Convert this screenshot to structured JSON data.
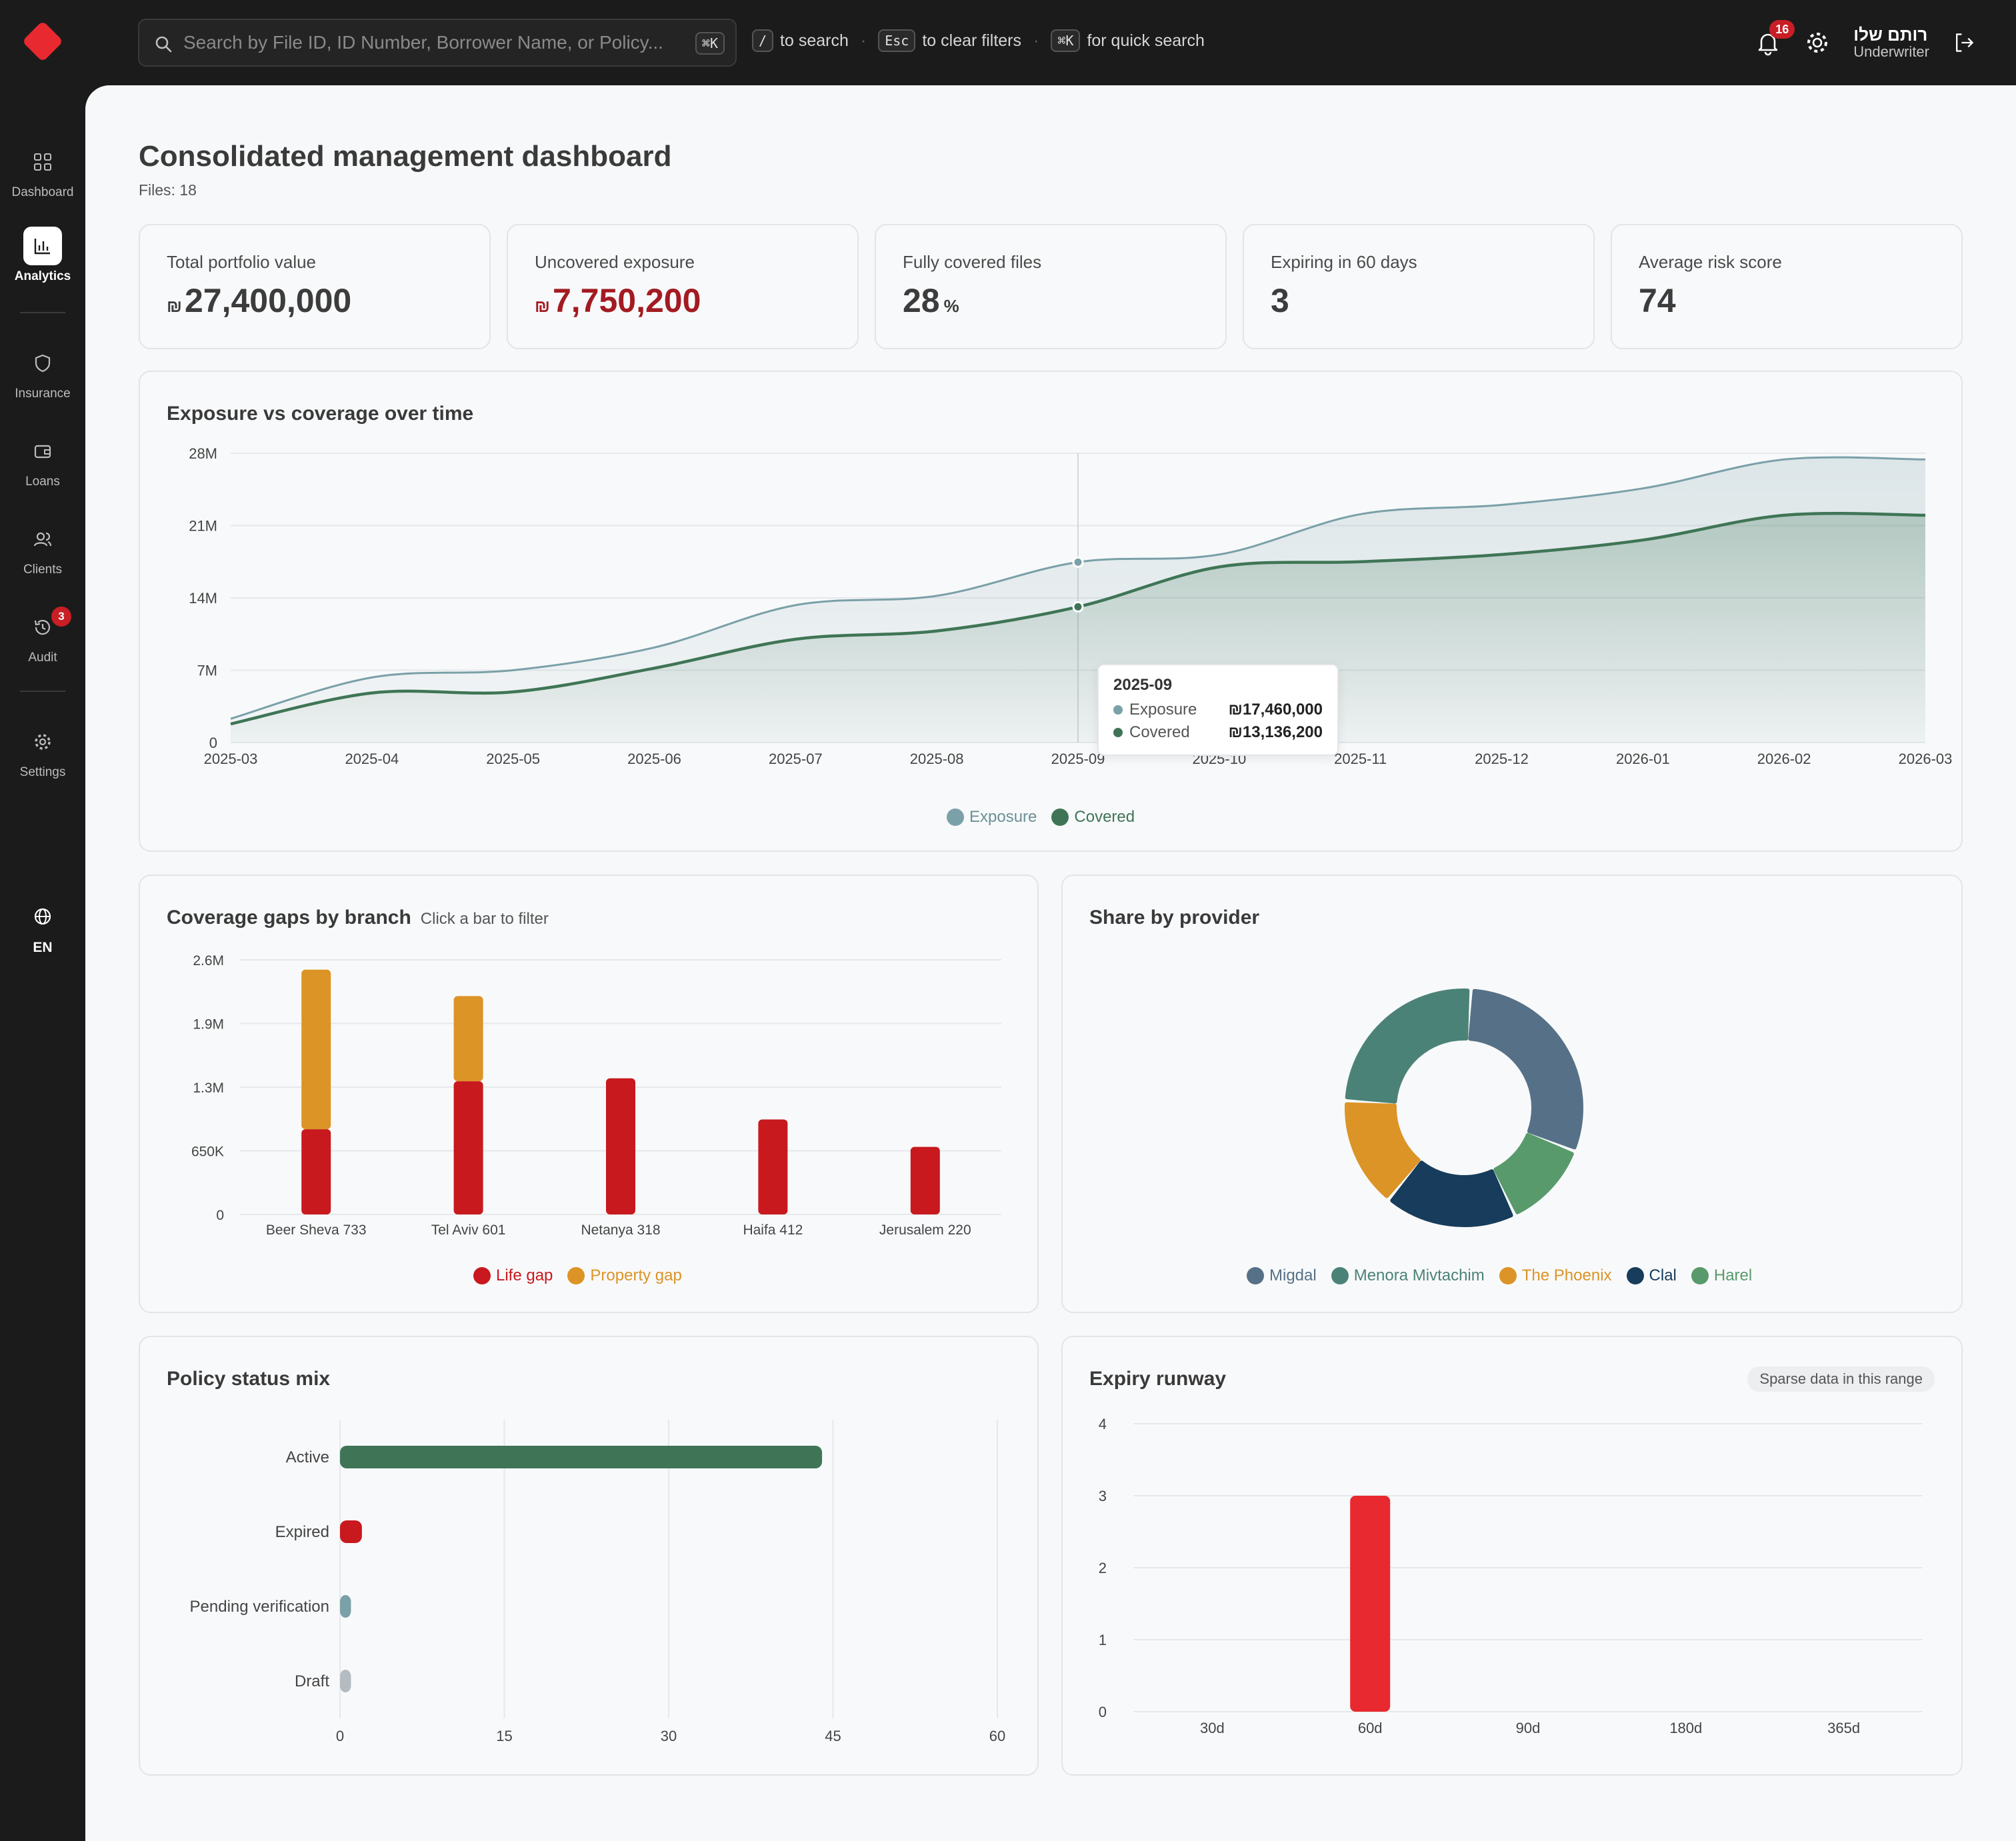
{
  "search": {
    "placeholder": "Search by File ID, ID Number, Borrower Name, or Policy...",
    "shortcut": "⌘K"
  },
  "hints": [
    {
      "key": "/",
      "text": "to search"
    },
    {
      "key": "Esc",
      "text": "to clear filters"
    },
    {
      "key": "⌘K",
      "text": "for quick search"
    }
  ],
  "header": {
    "notifications": "16",
    "user_name": "רותם שלו",
    "user_role": "Underwriter"
  },
  "sidebar": {
    "items": [
      {
        "label": "Dashboard",
        "icon": "grid-icon"
      },
      {
        "label": "Analytics",
        "icon": "bar-chart-icon",
        "active": true
      },
      {
        "label": "Insurance",
        "icon": "shield-icon"
      },
      {
        "label": "Loans",
        "icon": "wallet-icon"
      },
      {
        "label": "Clients",
        "icon": "users-icon"
      },
      {
        "label": "Audit",
        "icon": "history-icon",
        "badge": "3"
      },
      {
        "label": "Settings",
        "icon": "gear-icon"
      }
    ],
    "language": "EN"
  },
  "page": {
    "title": "Consolidated management dashboard",
    "subtitle": "Files: 18"
  },
  "kpis": [
    {
      "label": "Total portfolio value",
      "currency": "₪",
      "value": "27,400,000",
      "unit": ""
    },
    {
      "label": "Uncovered exposure",
      "currency": "₪",
      "value": "7,750,200",
      "unit": "",
      "accent": "#a31b22"
    },
    {
      "label": "Fully covered files",
      "currency": "",
      "value": "28",
      "unit": "%"
    },
    {
      "label": "Expiring in 60 days",
      "currency": "",
      "value": "3",
      "unit": ""
    },
    {
      "label": "Average risk score",
      "currency": "",
      "value": "74",
      "unit": ""
    }
  ],
  "chart_data": [
    {
      "type": "area",
      "title": "Exposure vs coverage over time",
      "x": [
        "2025-03",
        "2025-04",
        "2025-05",
        "2025-06",
        "2025-07",
        "2025-08",
        "2025-09",
        "2025-10",
        "2025-11",
        "2025-12",
        "2026-01",
        "2026-02",
        "2026-03"
      ],
      "y_ticks": [
        "0",
        "7M",
        "14M",
        "21M",
        "28M"
      ],
      "ylim": [
        0,
        28000000
      ],
      "series": [
        {
          "name": "Exposure",
          "color": "#7aa0a8",
          "values": [
            2300000,
            6300000,
            7000000,
            9200000,
            13300000,
            14200000,
            17460000,
            18200000,
            22100000,
            23000000,
            24600000,
            27400000,
            27400000
          ]
        },
        {
          "name": "Covered",
          "color": "#3f7556",
          "values": [
            1800000,
            4800000,
            4900000,
            7200000,
            10000000,
            10800000,
            13136200,
            17000000,
            17500000,
            18200000,
            19600000,
            22000000,
            22000000
          ]
        }
      ],
      "tooltip": {
        "title": "2025-09",
        "rows": [
          {
            "name": "Exposure",
            "value": "₪17,460,000"
          },
          {
            "name": "Covered",
            "value": "₪13,136,200"
          }
        ]
      },
      "legend": "bottom-center"
    },
    {
      "type": "bar",
      "title": "Coverage gaps by branch",
      "note": "Click a bar to filter",
      "categories": [
        "Beer Sheva 733",
        "Tel Aviv 601",
        "Netanya 318",
        "Haifa 412",
        "Jerusalem 220"
      ],
      "y_ticks": [
        "0",
        "650K",
        "1.3M",
        "1.9M",
        "2.6M"
      ],
      "ylim": [
        0,
        2600000
      ],
      "stacked": true,
      "series": [
        {
          "name": "Life gap",
          "color": "#c8191e",
          "values": [
            870000,
            1360000,
            1390000,
            970000,
            690000
          ]
        },
        {
          "name": "Property gap",
          "color": "#dc9426",
          "values": [
            1630000,
            870000,
            0,
            0,
            0
          ]
        }
      ],
      "legend": "bottom-center"
    },
    {
      "type": "pie",
      "title": "Share by provider",
      "donut": true,
      "series": [
        {
          "name": "Migdal",
          "color": "#567087",
          "value": 30
        },
        {
          "name": "Harel",
          "color": "#589a6b",
          "value": 12
        },
        {
          "name": "Clal",
          "color": "#173c5c",
          "value": 18
        },
        {
          "name": "The Phoenix",
          "color": "#dc9426",
          "value": 15
        },
        {
          "name": "Menora Mivtachim",
          "color": "#4b8277",
          "value": 25
        }
      ],
      "legend_order": [
        "Migdal",
        "Menora Mivtachim",
        "The Phoenix",
        "Clal",
        "Harel"
      ],
      "legend": "bottom-center"
    },
    {
      "type": "bar",
      "title": "Policy status mix",
      "orientation": "horizontal",
      "categories": [
        "Active",
        "Expired",
        "Pending verification",
        "Draft"
      ],
      "values": [
        44,
        2,
        1,
        1
      ],
      "colors": [
        "#3f7556",
        "#c8191e",
        "#7aa0a8",
        "#b4bcc2"
      ],
      "x_ticks": [
        "0",
        "15",
        "30",
        "45",
        "60"
      ],
      "xlim": [
        0,
        60
      ]
    },
    {
      "type": "bar",
      "title": "Expiry runway",
      "note": "Sparse data in this range",
      "categories": [
        "30d",
        "60d",
        "90d",
        "180d",
        "365d"
      ],
      "values": [
        0,
        3,
        0,
        0,
        0
      ],
      "color": "#e8292f",
      "y_ticks": [
        "0",
        "1",
        "2",
        "3",
        "4"
      ],
      "ylim": [
        0,
        4
      ]
    }
  ]
}
